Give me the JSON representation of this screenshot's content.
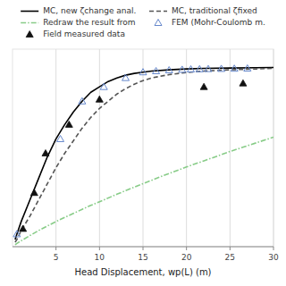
{
  "chart_data": {
    "type": "line",
    "xlabel": "Head Displacement, wp(L) (m)",
    "xlim": [
      0,
      30
    ],
    "xticks": [
      5,
      10,
      15,
      20,
      25,
      30
    ],
    "ylim": [
      0,
      1.1
    ],
    "grid": true,
    "legend": "top",
    "tick_labels": "x",
    "series": [
      {
        "name": "MC, new ζchange anal.",
        "type": "line",
        "line_style": "solid",
        "color": "#000000",
        "x": [
          0.3,
          0.5,
          1,
          2,
          3,
          4,
          5,
          6,
          7,
          8,
          9,
          10,
          11,
          12,
          13,
          14,
          15,
          16,
          18,
          20,
          22,
          25,
          28,
          30
        ],
        "values": [
          0.04,
          0.07,
          0.14,
          0.26,
          0.38,
          0.5,
          0.6,
          0.68,
          0.75,
          0.81,
          0.86,
          0.89,
          0.92,
          0.94,
          0.955,
          0.965,
          0.972,
          0.978,
          0.985,
          0.99,
          0.993,
          0.995,
          0.997,
          0.998
        ]
      },
      {
        "name": "MC, traditional ζfixed",
        "type": "line",
        "line_style": "dashed",
        "color": "#555555",
        "x": [
          0.3,
          0.5,
          1,
          2,
          3,
          4,
          5,
          6,
          7,
          8,
          9,
          10,
          11,
          12,
          13,
          14,
          15,
          16,
          18,
          20,
          22,
          25,
          28,
          30
        ],
        "values": [
          0.025,
          0.04,
          0.09,
          0.17,
          0.26,
          0.35,
          0.44,
          0.52,
          0.59,
          0.66,
          0.72,
          0.77,
          0.81,
          0.85,
          0.88,
          0.905,
          0.925,
          0.94,
          0.958,
          0.97,
          0.978,
          0.985,
          0.99,
          0.993
        ]
      },
      {
        "name": "Redraw the result from",
        "type": "line",
        "line_style": "dashdot",
        "color": "#88cc88",
        "x": [
          0.3,
          0.5,
          1,
          2,
          3,
          4,
          5,
          6,
          7,
          8,
          9,
          10,
          12,
          14,
          16,
          18,
          20,
          22,
          25,
          28,
          30
        ],
        "values": [
          0.01,
          0.018,
          0.033,
          0.062,
          0.09,
          0.115,
          0.14,
          0.163,
          0.185,
          0.208,
          0.23,
          0.25,
          0.292,
          0.332,
          0.37,
          0.408,
          0.444,
          0.478,
          0.53,
          0.578,
          0.61
        ]
      },
      {
        "name": "FEM (Mohr-Coulomb m.",
        "type": "scatter",
        "marker": "triangle-open",
        "color": "#6688cc",
        "x": [
          0.5,
          5.5,
          8.0,
          10.5,
          13.0,
          15.0,
          16.5,
          18.0,
          19.5,
          20.5,
          21.5,
          22.5,
          24.0,
          25.5,
          27.0
        ],
        "values": [
          0.07,
          0.6,
          0.81,
          0.89,
          0.94,
          0.972,
          0.978,
          0.983,
          0.986,
          0.988,
          0.989,
          0.99,
          0.991,
          0.992,
          0.993
        ]
      },
      {
        "name": "Field measured data",
        "type": "scatter",
        "marker": "triangle",
        "color": "#111111",
        "x": [
          1.2,
          2.5,
          3.8,
          6.5,
          10.0,
          22.0,
          26.5
        ],
        "values": [
          0.1,
          0.3,
          0.52,
          0.68,
          0.82,
          0.89,
          0.91
        ]
      }
    ]
  }
}
